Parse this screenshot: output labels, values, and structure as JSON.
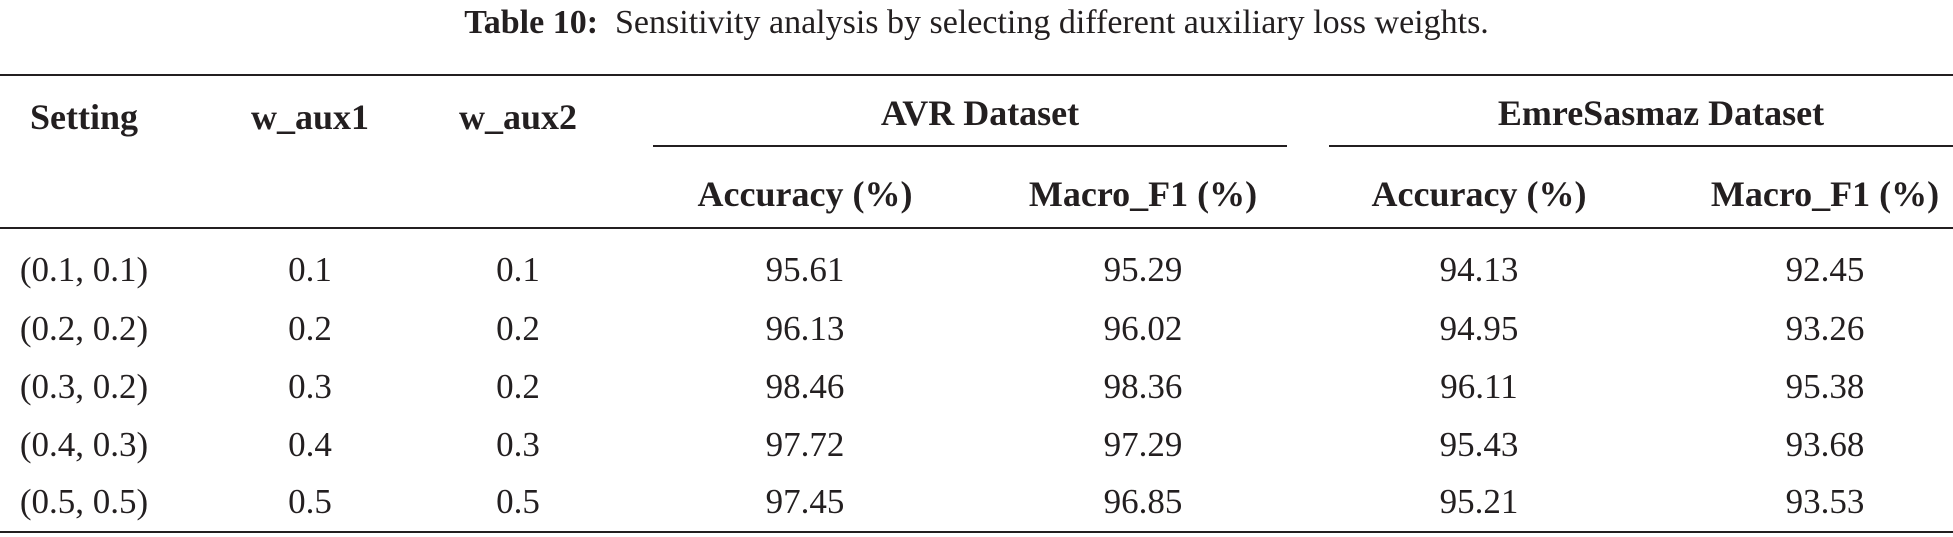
{
  "caption": {
    "label": "Table 10:",
    "text": "Sensitivity analysis by selecting different auxiliary loss weights."
  },
  "header": {
    "setting": "Setting",
    "w_aux1": "w_aux1",
    "w_aux2": "w_aux2",
    "groups": [
      {
        "name": "AVR Dataset",
        "metrics": [
          "Accuracy (%)",
          "Macro_F1 (%)"
        ]
      },
      {
        "name": "EmreSasmaz Dataset",
        "metrics": [
          "Accuracy (%)",
          "Macro_F1 (%)"
        ]
      }
    ]
  },
  "rows": [
    [
      "(0.1, 0.1)",
      "0.1",
      "0.1",
      "95.61",
      "95.29",
      "94.13",
      "92.45"
    ],
    [
      "(0.2, 0.2)",
      "0.2",
      "0.2",
      "96.13",
      "96.02",
      "94.95",
      "93.26"
    ],
    [
      "(0.3, 0.2)",
      "0.3",
      "0.2",
      "98.46",
      "98.36",
      "96.11",
      "95.38"
    ],
    [
      "(0.4, 0.3)",
      "0.4",
      "0.3",
      "97.72",
      "97.29",
      "95.43",
      "93.68"
    ],
    [
      "(0.5, 0.5)",
      "0.5",
      "0.5",
      "97.45",
      "96.85",
      "95.21",
      "93.53"
    ]
  ]
}
